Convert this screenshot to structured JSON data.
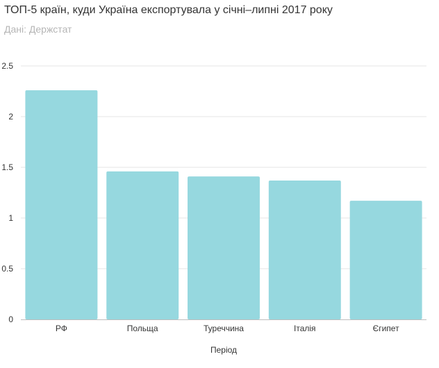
{
  "header": {
    "title": "ТОП-5 країн, куди Україна експортувала у січні–липні 2017 року",
    "subtitle": "Дані: Держстат"
  },
  "colors": {
    "bar": "#96d8df",
    "grid": "#e6e6e6",
    "baseline": "#bdbdbd",
    "text": "#333333",
    "subtitle": "#b5b5b5"
  },
  "chart_data": {
    "type": "bar",
    "title": "ТОП-5 країн, куди Україна експортувала у січні–липні 2017 року",
    "subtitle": "Дані: Держстат",
    "categories": [
      "РФ",
      "Польща",
      "Туреччина",
      "Італія",
      "Єгипет"
    ],
    "values": [
      2.26,
      1.46,
      1.41,
      1.37,
      1.17
    ],
    "xlabel": "Період",
    "ylabel": "",
    "ylim": [
      0,
      2.5
    ],
    "yticks": [
      "0",
      "0.5",
      "1",
      "1.5",
      "2",
      "2.5"
    ],
    "grid": true,
    "legend": "none"
  }
}
